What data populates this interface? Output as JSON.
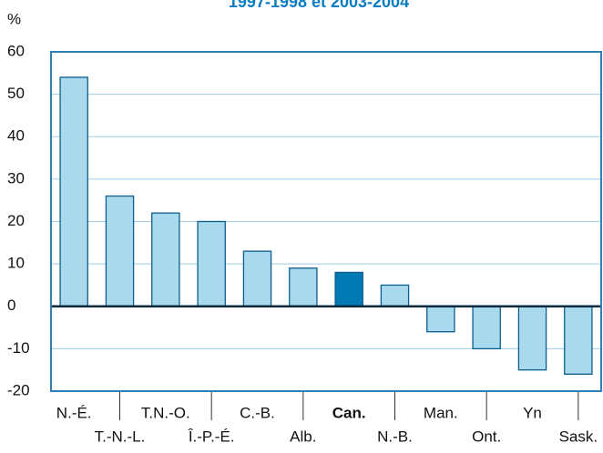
{
  "chart_data": {
    "type": "bar",
    "title": "1997-1998 et 2003-2004",
    "y_label": "%",
    "categories": [
      "N.-É.",
      "T.-N.-L.",
      "T.N.-O.",
      "Î.-P.-É.",
      "C.-B.",
      "Alb.",
      "Can.",
      "N.-B.",
      "Man.",
      "Ont.",
      "Yn",
      "Sask."
    ],
    "values": [
      54,
      26,
      22,
      20,
      13,
      9,
      8,
      5,
      -6,
      -10,
      -15,
      -16
    ],
    "color": "#a9d9ec",
    "highlight": "Can.",
    "highlight_color": "#0079b5",
    "ylim": [
      -20,
      60
    ],
    "yticks": [
      -20,
      -10,
      0,
      10,
      20,
      30,
      40,
      50,
      60
    ],
    "grid": true
  }
}
